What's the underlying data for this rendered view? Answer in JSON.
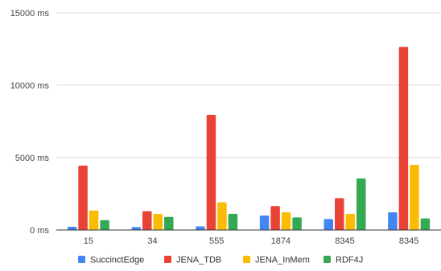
{
  "chart_data": {
    "type": "bar",
    "categories": [
      "15",
      "34",
      "555",
      "1874",
      "8345",
      "8345"
    ],
    "series": [
      {
        "name": "SuccinctEdge",
        "color": "#4285f4",
        "values": [
          220,
          200,
          250,
          1000,
          760,
          1220
        ]
      },
      {
        "name": "JENA_TDB",
        "color": "#ea4335",
        "values": [
          4450,
          1300,
          7950,
          1650,
          2200,
          12650
        ]
      },
      {
        "name": "JENA_InMem",
        "color": "#fbbc04",
        "values": [
          1350,
          1120,
          1920,
          1220,
          1120,
          4500
        ]
      },
      {
        "name": "RDF4J",
        "color": "#34a853",
        "values": [
          680,
          900,
          1120,
          870,
          3560,
          800
        ]
      }
    ],
    "yticks": [
      "0 ms",
      "5000 ms",
      "10000 ms",
      "15000 ms"
    ],
    "ytick_values": [
      0,
      5000,
      10000,
      15000
    ],
    "ylim": [
      0,
      15000
    ],
    "grid": true,
    "legend_position": "bottom"
  }
}
